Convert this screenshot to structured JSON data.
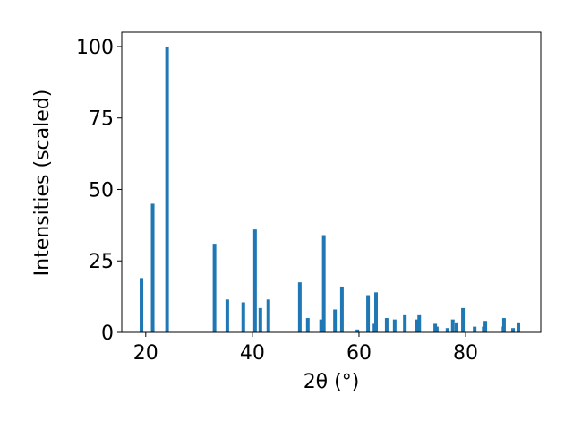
{
  "chart_data": {
    "type": "bar",
    "xlabel": "2θ (°)",
    "ylabel": "Intensities (scaled)",
    "color": "#1f77b4",
    "x": [
      19.2,
      21.3,
      24.0,
      32.9,
      35.3,
      38.3,
      40.5,
      41.5,
      43.0,
      48.9,
      50.4,
      52.9,
      53.4,
      55.5,
      56.8,
      59.7,
      61.7,
      62.9,
      63.2,
      65.2,
      66.7,
      68.6,
      70.9,
      71.3,
      74.3,
      74.6,
      76.6,
      77.6,
      78.3,
      79.5,
      81.7,
      83.4,
      83.7,
      87.1,
      87.2,
      88.9,
      89.9
    ],
    "values": [
      19,
      45,
      100,
      31,
      11.5,
      10.5,
      36,
      8.5,
      11.5,
      17.5,
      5,
      4.5,
      34,
      8,
      16,
      1,
      13,
      3,
      14,
      5,
      4.5,
      6,
      4.5,
      6,
      3,
      2,
      1.5,
      4.5,
      3.5,
      8.5,
      2,
      2,
      4,
      2,
      5,
      1.5,
      3.5
    ],
    "xlim": [
      15.5,
      94.1
    ],
    "ylim": [
      0,
      105
    ],
    "xticks": [
      20,
      40,
      60,
      80
    ],
    "yticks": [
      0,
      25,
      50,
      75,
      100
    ]
  }
}
